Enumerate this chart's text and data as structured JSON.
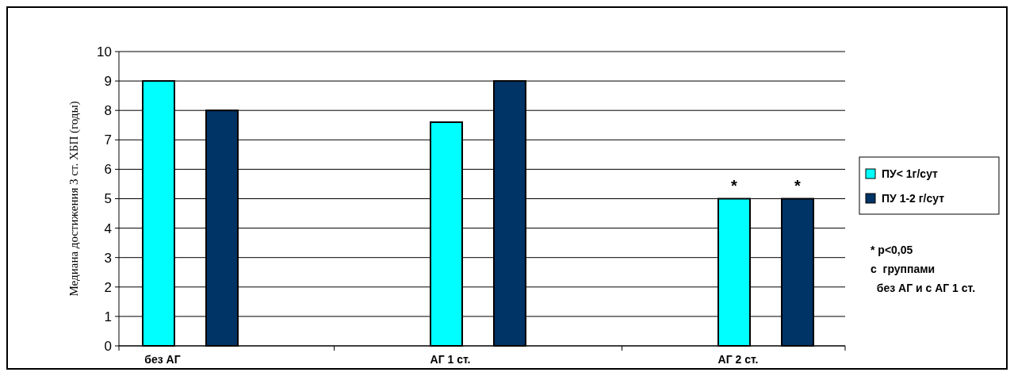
{
  "chart_data": {
    "type": "bar",
    "ylabel": "Медиана достижения 3 ст. ХБП (годы)",
    "categories": [
      "без АГ",
      "АГ 1 ст.",
      "АГ 2 ст."
    ],
    "series": [
      {
        "name": "ПУ< 1г/сут",
        "color": "#00ffff",
        "values": [
          9,
          7.6,
          5
        ]
      },
      {
        "name": "ПУ 1-2 г/сут",
        "color": "#003366",
        "values": [
          8,
          9,
          5
        ]
      }
    ],
    "ylim": [
      0,
      10
    ],
    "yticks": [
      0,
      1,
      2,
      3,
      4,
      5,
      6,
      7,
      8,
      9,
      10
    ],
    "grid": "y",
    "legend": "right",
    "annotations": [
      "*",
      "*",
      "* p<0,05\nс  группами\n  без АГ и с АГ 1 ст."
    ]
  }
}
